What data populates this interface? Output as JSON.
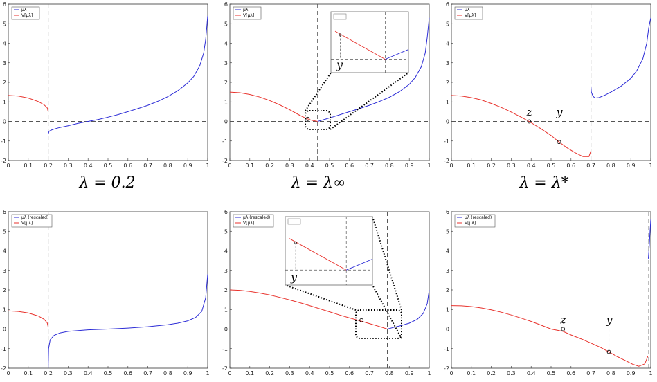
{
  "colors": {
    "blue": "#2b2bd6",
    "red": "#e8322c",
    "axis": "#333333",
    "dashed": "#555555"
  },
  "captions": {
    "top_left": "λ = 0.2",
    "top_mid": "λ = λ∞",
    "top_right": "λ = λ*"
  },
  "chart_data": [
    {
      "type": "line",
      "panel": "top-left",
      "xlim": [
        0,
        1
      ],
      "ylim": [
        -2,
        6
      ],
      "grid": false,
      "legend": "top-left",
      "xticks": [
        "0",
        "0.1",
        "0.2",
        "0.3",
        "0.4",
        "0.5",
        "0.6",
        "0.7",
        "0.8",
        "0.9",
        "1"
      ],
      "yticks": [
        "-2",
        "-1",
        "0",
        "1",
        "2",
        "3",
        "4",
        "5",
        "6"
      ],
      "vline": 0.2,
      "series": [
        {
          "name": "μλ",
          "color": "blue",
          "x": [
            0.2,
            0.205,
            0.22,
            0.25,
            0.3,
            0.35,
            0.4,
            0.45,
            0.5,
            0.55,
            0.6,
            0.65,
            0.7,
            0.75,
            0.8,
            0.85,
            0.9,
            0.93,
            0.96,
            0.98,
            0.99,
            0.995,
            1.0
          ],
          "y": [
            -0.65,
            -0.5,
            -0.42,
            -0.33,
            -0.22,
            -0.1,
            0.0,
            0.1,
            0.22,
            0.35,
            0.5,
            0.66,
            0.83,
            1.03,
            1.27,
            1.57,
            1.97,
            2.3,
            2.85,
            3.5,
            4.2,
            4.8,
            5.4
          ]
        },
        {
          "name": "V[μλ]",
          "color": "red",
          "x": [
            0,
            0.05,
            0.1,
            0.15,
            0.18,
            0.195,
            0.2
          ],
          "y": [
            1.33,
            1.3,
            1.2,
            1.02,
            0.85,
            0.7,
            0.5
          ]
        }
      ]
    },
    {
      "type": "line",
      "panel": "top-middle",
      "xlim": [
        0,
        1
      ],
      "ylim": [
        -2,
        6
      ],
      "grid": false,
      "legend": "top-left",
      "xticks": [
        "0",
        "0.1",
        "0.2",
        "0.3",
        "0.4",
        "0.5",
        "0.6",
        "0.7",
        "0.8",
        "0.9",
        "1"
      ],
      "yticks": [
        "-2",
        "-1",
        "0",
        "1",
        "2",
        "3",
        "4",
        "5",
        "6"
      ],
      "vline": 0.44,
      "series": [
        {
          "name": "μλ",
          "color": "blue",
          "x": [
            0.44,
            0.48,
            0.52,
            0.56,
            0.6,
            0.65,
            0.7,
            0.75,
            0.8,
            0.85,
            0.9,
            0.93,
            0.96,
            0.98,
            0.99,
            1.0
          ],
          "y": [
            0.0,
            0.12,
            0.24,
            0.37,
            0.5,
            0.66,
            0.83,
            1.02,
            1.24,
            1.52,
            1.9,
            2.25,
            2.8,
            3.5,
            4.3,
            5.3
          ]
        },
        {
          "name": "V[μλ]",
          "color": "red",
          "x": [
            0,
            0.05,
            0.1,
            0.15,
            0.2,
            0.25,
            0.3,
            0.35,
            0.38,
            0.41,
            0.44
          ],
          "y": [
            1.5,
            1.47,
            1.38,
            1.25,
            1.07,
            0.85,
            0.6,
            0.32,
            0.17,
            0.06,
            0.0
          ]
        }
      ],
      "points": [
        {
          "x": 0.39,
          "y": 0.13
        }
      ],
      "inset_label": "y"
    },
    {
      "type": "line",
      "panel": "top-right",
      "xlim": [
        0,
        1
      ],
      "ylim": [
        -2,
        6
      ],
      "grid": false,
      "legend": "top-left",
      "xticks": [
        "0",
        "0.1",
        "0.2",
        "0.3",
        "0.4",
        "0.5",
        "0.6",
        "0.7",
        "0.8",
        "0.9",
        "1"
      ],
      "yticks": [
        "-2",
        "-1",
        "0",
        "1",
        "2",
        "3",
        "4",
        "5",
        "6"
      ],
      "vline": 0.7,
      "series": [
        {
          "name": "μλ",
          "color": "blue",
          "x": [
            0.7,
            0.702,
            0.71,
            0.72,
            0.74,
            0.77,
            0.8,
            0.85,
            0.9,
            0.93,
            0.96,
            0.98,
            0.99,
            1.0
          ],
          "y": [
            1.8,
            1.5,
            1.3,
            1.2,
            1.22,
            1.35,
            1.5,
            1.8,
            2.2,
            2.6,
            3.2,
            4.0,
            4.8,
            5.3
          ]
        },
        {
          "name": "V[μλ]",
          "color": "red",
          "x": [
            0,
            0.05,
            0.1,
            0.15,
            0.2,
            0.25,
            0.3,
            0.35,
            0.39,
            0.45,
            0.5,
            0.54,
            0.58,
            0.62,
            0.66,
            0.69,
            0.7
          ],
          "y": [
            1.33,
            1.3,
            1.22,
            1.1,
            0.92,
            0.72,
            0.48,
            0.22,
            0.0,
            -0.38,
            -0.72,
            -1.05,
            -1.35,
            -1.6,
            -1.8,
            -1.8,
            -1.5
          ]
        }
      ],
      "points": [
        {
          "x": 0.39,
          "y": 0.0,
          "label": "z"
        },
        {
          "x": 0.54,
          "y": -1.05,
          "label": "y"
        }
      ]
    },
    {
      "type": "line",
      "panel": "bottom-left",
      "xlim": [
        0,
        1
      ],
      "ylim": [
        -2,
        6
      ],
      "grid": false,
      "legend": "top-left",
      "xticks": [
        "0",
        "0.1",
        "0.2",
        "0.3",
        "0.4",
        "0.5",
        "0.6",
        "0.7",
        "0.8",
        "0.9",
        "1"
      ],
      "yticks": [
        "-2",
        "-1",
        "0",
        "1",
        "2",
        "3",
        "4",
        "5",
        "6"
      ],
      "vline": 0.2,
      "series": [
        {
          "name": "μλ (rescaled)",
          "color": "blue",
          "x": [
            0.2,
            0.202,
            0.21,
            0.23,
            0.26,
            0.3,
            0.4,
            0.5,
            0.6,
            0.7,
            0.8,
            0.85,
            0.9,
            0.94,
            0.97,
            0.99,
            1.0
          ],
          "y": [
            -2.0,
            -1.0,
            -0.55,
            -0.32,
            -0.2,
            -0.12,
            -0.04,
            0.0,
            0.05,
            0.12,
            0.22,
            0.3,
            0.42,
            0.6,
            0.9,
            1.6,
            2.8
          ]
        },
        {
          "name": "V[μλ]",
          "color": "red",
          "x": [
            0,
            0.05,
            0.1,
            0.15,
            0.18,
            0.195,
            0.2
          ],
          "y": [
            0.93,
            0.9,
            0.82,
            0.67,
            0.5,
            0.32,
            0.1
          ]
        }
      ]
    },
    {
      "type": "line",
      "panel": "bottom-middle",
      "xlim": [
        0,
        1
      ],
      "ylim": [
        -2,
        6
      ],
      "grid": false,
      "legend": "top-left",
      "xticks": [
        "0",
        "0.1",
        "0.2",
        "0.3",
        "0.4",
        "0.5",
        "0.6",
        "0.7",
        "0.8",
        "0.9",
        "1"
      ],
      "yticks": [
        "-2",
        "-1",
        "0",
        "1",
        "2",
        "3",
        "4",
        "5",
        "6"
      ],
      "vline": 0.79,
      "series": [
        {
          "name": "μλ (rescaled)",
          "color": "blue",
          "x": [
            0.79,
            0.82,
            0.86,
            0.9,
            0.94,
            0.97,
            0.99,
            1.0
          ],
          "y": [
            0.0,
            0.08,
            0.18,
            0.3,
            0.5,
            0.8,
            1.3,
            2.0
          ]
        },
        {
          "name": "V[μλ]",
          "color": "red",
          "x": [
            0,
            0.05,
            0.1,
            0.15,
            0.2,
            0.25,
            0.3,
            0.35,
            0.4,
            0.45,
            0.5,
            0.55,
            0.6,
            0.65,
            0.7,
            0.75,
            0.79
          ],
          "y": [
            2.0,
            1.98,
            1.92,
            1.84,
            1.74,
            1.62,
            1.49,
            1.35,
            1.2,
            1.04,
            0.88,
            0.72,
            0.57,
            0.43,
            0.28,
            0.13,
            0.0
          ]
        }
      ],
      "points": [
        {
          "x": 0.66,
          "y": 0.45
        }
      ],
      "inset_label": "y"
    },
    {
      "type": "line",
      "panel": "bottom-right",
      "xlim": [
        0,
        1
      ],
      "ylim": [
        -2,
        6
      ],
      "grid": false,
      "legend": "top-left",
      "xticks": [
        "0",
        "0.1",
        "0.2",
        "0.3",
        "0.4",
        "0.5",
        "0.6",
        "0.7",
        "0.8",
        "0.9",
        "1"
      ],
      "yticks": [
        "-2",
        "-1",
        "0",
        "1",
        "2",
        "3",
        "4",
        "5",
        "6"
      ],
      "vline": 0.99,
      "series": [
        {
          "name": "μλ (rescaled)",
          "color": "blue",
          "x": [
            0.988,
            0.992,
            0.996,
            1.0
          ],
          "y": [
            3.6,
            4.2,
            4.9,
            5.6
          ]
        },
        {
          "name": "V[μλ]",
          "color": "red",
          "x": [
            0,
            0.05,
            0.1,
            0.15,
            0.2,
            0.25,
            0.3,
            0.35,
            0.4,
            0.45,
            0.5,
            0.56,
            0.6,
            0.65,
            0.7,
            0.75,
            0.79,
            0.83,
            0.87,
            0.91,
            0.94,
            0.97,
            0.985
          ],
          "y": [
            1.2,
            1.19,
            1.15,
            1.08,
            0.98,
            0.86,
            0.72,
            0.56,
            0.39,
            0.2,
            0.0,
            -0.12,
            -0.3,
            -0.5,
            -0.72,
            -0.95,
            -1.17,
            -1.4,
            -1.6,
            -1.8,
            -1.9,
            -1.78,
            -1.4
          ]
        }
      ],
      "points": [
        {
          "x": 0.56,
          "y": 0.0,
          "label": "z"
        },
        {
          "x": 0.79,
          "y": -1.17,
          "label": "y"
        }
      ]
    }
  ]
}
